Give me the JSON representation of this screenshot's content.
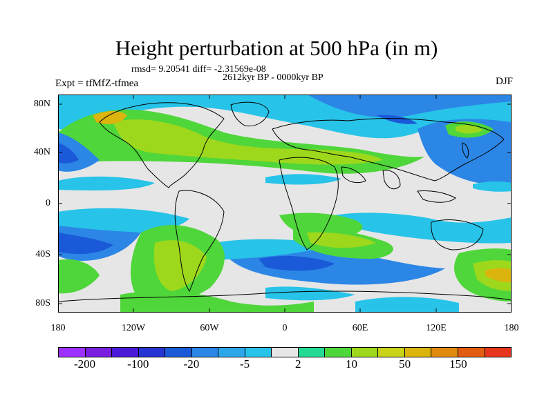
{
  "title": "Height perturbation at 500 hPa (in m)",
  "stats": "rmsd= 9.20541 diff= -2.31569e-08",
  "period": "2612kyr BP - 0000kyr BP",
  "experiment": "Expt = tfMfZ-tfmea",
  "season": "DJF",
  "map": {
    "y_tick_labels": [
      "80N",
      "40N",
      "0",
      "40S",
      "80S"
    ],
    "x_tick_labels": [
      "180",
      "120W",
      "60W",
      "0",
      "60E",
      "120E",
      "180"
    ]
  },
  "legend": {
    "colors": [
      "#9b30ff",
      "#7a1fe0",
      "#4b19d8",
      "#2534d3",
      "#1a5ad8",
      "#2c86e6",
      "#2ea6ea",
      "#28c3e8",
      "#e6e6e6",
      "#23db95",
      "#4fd63a",
      "#9ed81c",
      "#c8d31a",
      "#dcb40e",
      "#e08a10",
      "#e25d10",
      "#e6361d"
    ],
    "labels": [
      "-200",
      "-100",
      "-20",
      "-5",
      "2",
      "10",
      "50",
      "150"
    ]
  },
  "colors": {
    "land_outline": "#000000",
    "neutral": "#e6e6e6",
    "green": "#4fd63a",
    "yellow_green": "#9ed81c",
    "orange": "#dcb40e",
    "cyan": "#28c3e8",
    "light_blue": "#2ea6ea",
    "blue": "#2c86e6",
    "dark_blue": "#1a5ad8"
  }
}
